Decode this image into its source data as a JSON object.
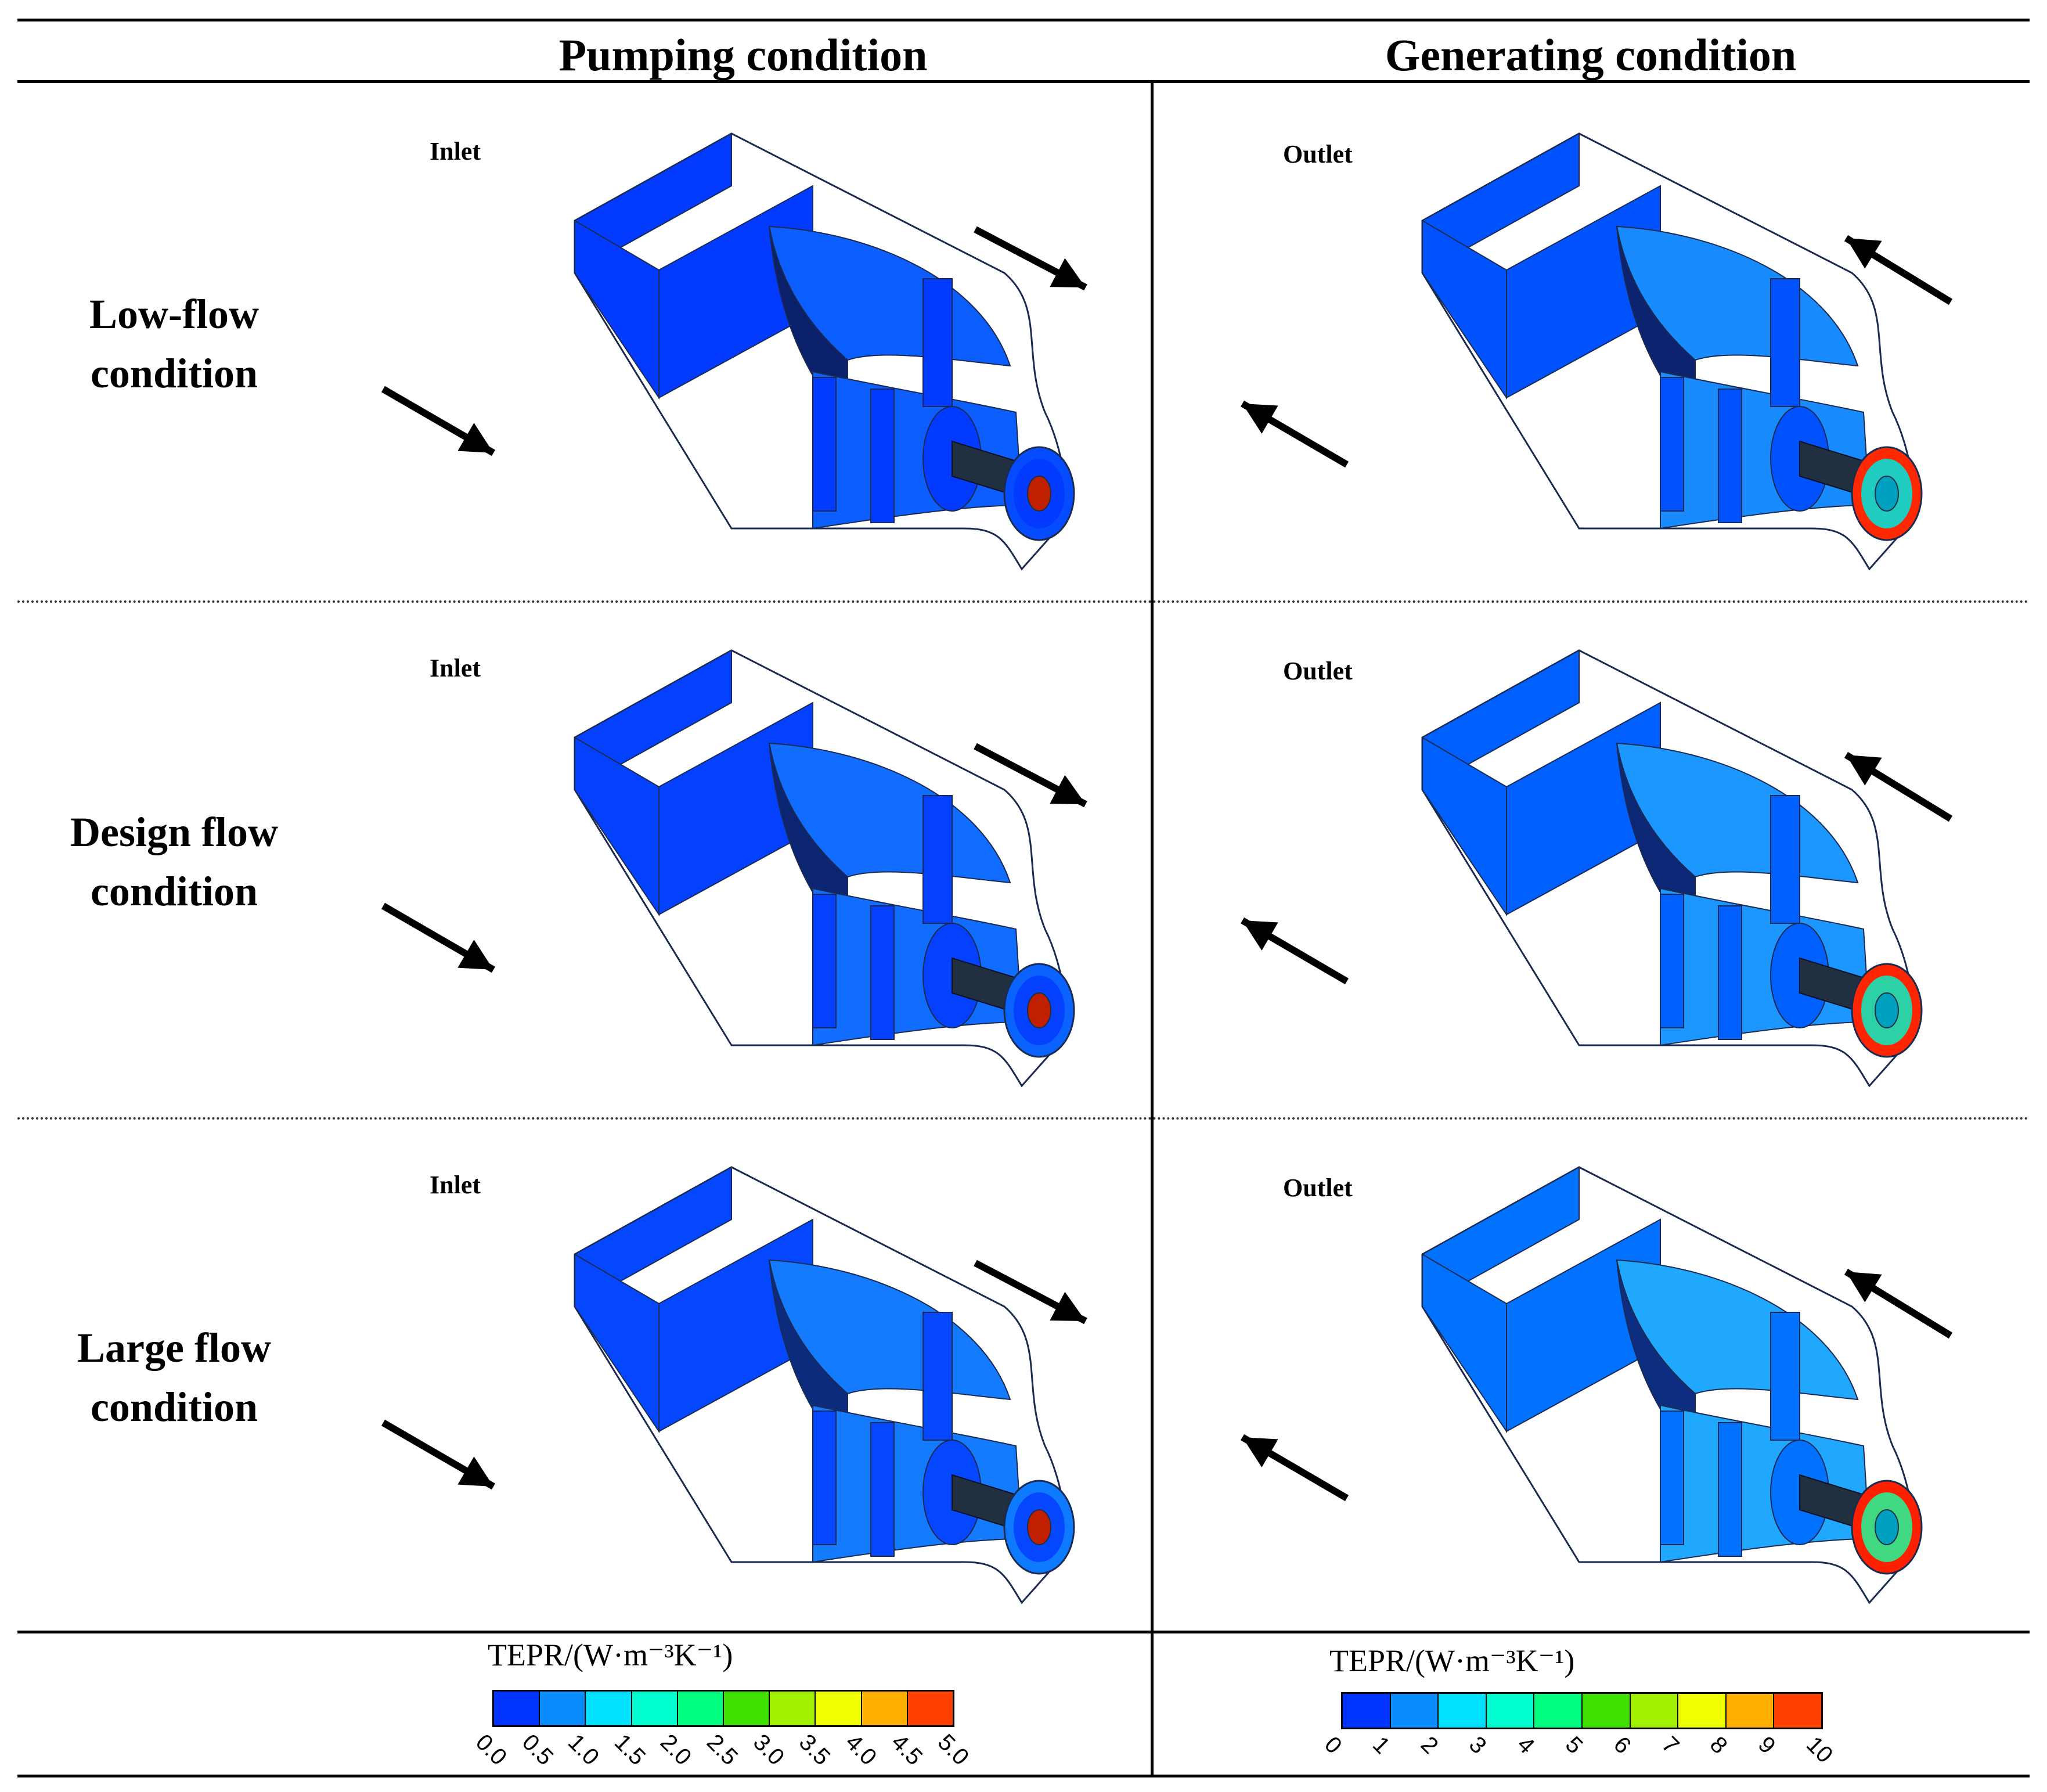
{
  "header": {
    "col_pumping": "Pumping condition",
    "col_generating": "Generating condition"
  },
  "rows": [
    {
      "label_line1": "Low-flow",
      "label_line2": "condition"
    },
    {
      "label_line1": "Design flow",
      "label_line2": "condition"
    },
    {
      "label_line1": "Large flow",
      "label_line2": "condition"
    }
  ],
  "pumping": {
    "port_label": "Inlet",
    "flow_direction": "inward-toward-runner",
    "intensity": [
      0.15,
      0.3,
      0.45
    ]
  },
  "generating": {
    "port_label": "Outlet",
    "flow_direction": "outward-from-runner",
    "intensity": [
      0.25,
      0.35,
      0.5
    ]
  },
  "legend_pumping": {
    "title": "TEPR/(W·m⁻³K⁻¹)",
    "ticks": [
      "0.0",
      "0.5",
      "1.0",
      "1.5",
      "2.0",
      "2.5",
      "3.0",
      "3.5",
      "4.0",
      "4.5",
      "5.0"
    ]
  },
  "legend_generating": {
    "title": "TEPR/(W·m⁻³K⁻¹)",
    "ticks": [
      "0",
      "1",
      "2",
      "3",
      "4",
      "5",
      "6",
      "7",
      "8",
      "9",
      "10"
    ]
  },
  "colormap": [
    "#0033ff",
    "#0a8cff",
    "#00e0ff",
    "#00ffd0",
    "#00ff80",
    "#40e000",
    "#a0f000",
    "#f0ff00",
    "#ffb000",
    "#ff4000"
  ]
}
